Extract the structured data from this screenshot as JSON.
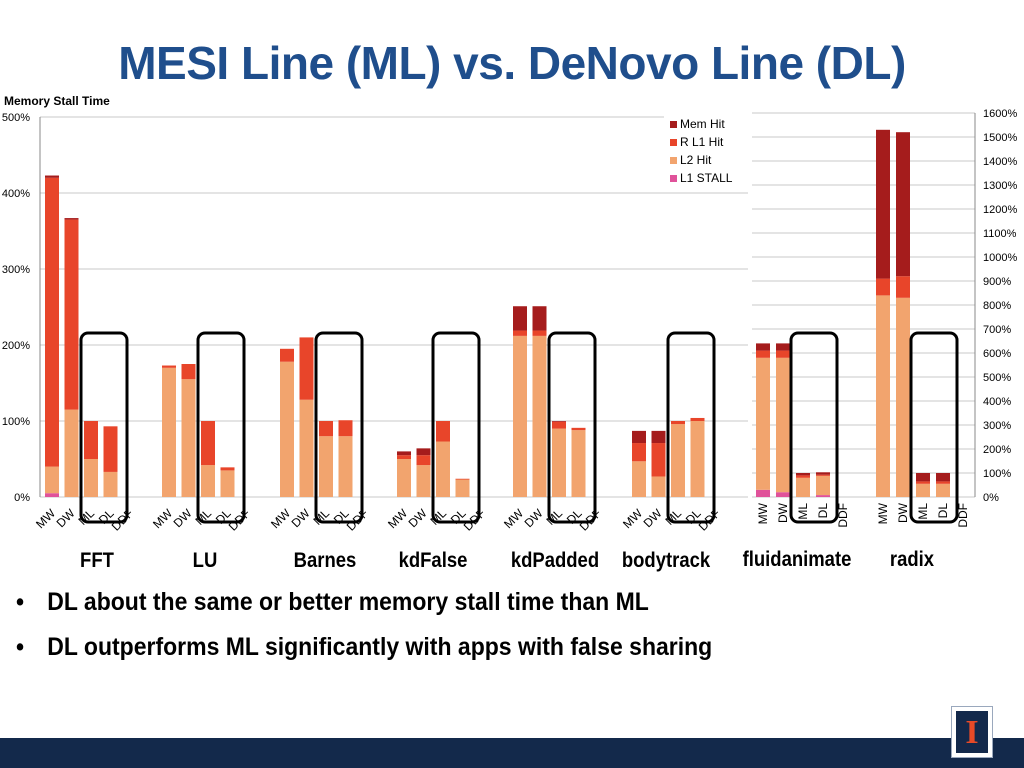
{
  "title": "MESI Line (ML) vs. DeNovo Line (DL)",
  "bullets": [
    "DL about the same or better memory stall time than ML",
    "DL outperforms ML significantly with apps with false sharing"
  ],
  "colors": {
    "mem_hit": "#a51c1c",
    "r_l1_hit": "#e8452a",
    "l2_hit": "#f2a46e",
    "l1_stall": "#e0529a",
    "title": "#1f4e8c",
    "footer": "#13294b"
  },
  "chart_data": [
    {
      "type": "bar",
      "stacked": true,
      "ylabel": "Memory Stall Time",
      "ylim": [
        0,
        500
      ],
      "yticks": [
        "0%",
        "100%",
        "200%",
        "300%",
        "400%",
        "500%"
      ],
      "grid": true,
      "series_names": [
        "L1 STALL",
        "L2 Hit",
        "R L1 Hit",
        "Mem Hit"
      ],
      "groups": [
        {
          "name": "FFT",
          "bars": [
            {
              "label": "MW",
              "values": [
                5,
                35,
                380,
                3
              ]
            },
            {
              "label": "DW",
              "values": [
                0,
                115,
                250,
                2
              ]
            },
            {
              "label": "ML",
              "values": [
                0,
                50,
                50,
                0
              ]
            },
            {
              "label": "DL",
              "values": [
                0,
                33,
                60,
                0
              ]
            },
            {
              "label": "DDF",
              "values": [
                0,
                0,
                0,
                0
              ]
            }
          ]
        },
        {
          "name": "LU",
          "bars": [
            {
              "label": "MW",
              "values": [
                0,
                170,
                3,
                0
              ]
            },
            {
              "label": "DW",
              "values": [
                0,
                155,
                20,
                0
              ]
            },
            {
              "label": "ML",
              "values": [
                0,
                42,
                58,
                0
              ]
            },
            {
              "label": "DL",
              "values": [
                0,
                35,
                4,
                0
              ]
            },
            {
              "label": "DDF",
              "values": [
                0,
                0,
                0,
                0
              ]
            }
          ]
        },
        {
          "name": "Barnes",
          "bars": [
            {
              "label": "MW",
              "values": [
                0,
                178,
                17,
                0
              ]
            },
            {
              "label": "DW",
              "values": [
                0,
                128,
                82,
                0
              ]
            },
            {
              "label": "ML",
              "values": [
                0,
                80,
                20,
                0
              ]
            },
            {
              "label": "DL",
              "values": [
                0,
                80,
                21,
                0
              ]
            },
            {
              "label": "DDF",
              "values": [
                0,
                0,
                0,
                0
              ]
            }
          ]
        },
        {
          "name": "kdFalse",
          "bars": [
            {
              "label": "MW",
              "values": [
                0,
                50,
                5,
                5
              ]
            },
            {
              "label": "DW",
              "values": [
                0,
                42,
                13,
                9
              ]
            },
            {
              "label": "ML",
              "values": [
                0,
                73,
                27,
                0
              ]
            },
            {
              "label": "DL",
              "values": [
                0,
                23,
                1,
                0
              ]
            },
            {
              "label": "DDF",
              "values": [
                0,
                0,
                0,
                0
              ]
            }
          ]
        },
        {
          "name": "kdPadded",
          "bars": [
            {
              "label": "MW",
              "values": [
                0,
                212,
                7,
                32
              ]
            },
            {
              "label": "DW",
              "values": [
                0,
                212,
                7,
                32
              ]
            },
            {
              "label": "ML",
              "values": [
                0,
                90,
                9,
                1
              ]
            },
            {
              "label": "DL",
              "values": [
                0,
                88,
                3,
                0
              ]
            },
            {
              "label": "DDF",
              "values": [
                0,
                0,
                0,
                0
              ]
            }
          ]
        },
        {
          "name": "bodytrack",
          "bars": [
            {
              "label": "MW",
              "values": [
                0,
                47,
                24,
                16
              ]
            },
            {
              "label": "DW",
              "values": [
                0,
                27,
                44,
                16
              ]
            },
            {
              "label": "ML",
              "values": [
                0,
                96,
                4,
                0
              ]
            },
            {
              "label": "DL",
              "values": [
                0,
                100,
                4,
                0
              ]
            },
            {
              "label": "DDF",
              "values": [
                0,
                0,
                0,
                0
              ]
            }
          ]
        }
      ]
    },
    {
      "type": "bar",
      "stacked": true,
      "ylim": [
        0,
        1600
      ],
      "yticks": [
        "0%",
        "100%",
        "200%",
        "300%",
        "400%",
        "500%",
        "600%",
        "700%",
        "800%",
        "900%",
        "1000%",
        "1100%",
        "1200%",
        "1300%",
        "1400%",
        "1500%",
        "1600%"
      ],
      "grid": true,
      "legend_position": "top-left",
      "legend": [
        "Mem Hit",
        "R L1 Hit",
        "L2 Hit",
        "L1 STALL"
      ],
      "series_names": [
        "L1 STALL",
        "L2 Hit",
        "R L1 Hit",
        "Mem Hit"
      ],
      "groups": [
        {
          "name": "fluidanimate",
          "bars": [
            {
              "label": "MW",
              "values": [
                30,
                550,
                30,
                30
              ]
            },
            {
              "label": "DW",
              "values": [
                20,
                560,
                30,
                30
              ]
            },
            {
              "label": "ML",
              "values": [
                0,
                80,
                10,
                10
              ]
            },
            {
              "label": "DL",
              "values": [
                8,
                80,
                5,
                10
              ]
            },
            {
              "label": "DDF",
              "values": [
                0,
                0,
                0,
                0
              ]
            }
          ]
        },
        {
          "name": "radix",
          "bars": [
            {
              "label": "MW",
              "values": [
                0,
                840,
                70,
                620
              ]
            },
            {
              "label": "DW",
              "values": [
                0,
                830,
                90,
                600
              ]
            },
            {
              "label": "ML",
              "values": [
                0,
                55,
                10,
                35
              ]
            },
            {
              "label": "DL",
              "values": [
                0,
                55,
                10,
                35
              ]
            },
            {
              "label": "DDF",
              "values": [
                0,
                0,
                0,
                0
              ]
            }
          ]
        }
      ]
    }
  ]
}
